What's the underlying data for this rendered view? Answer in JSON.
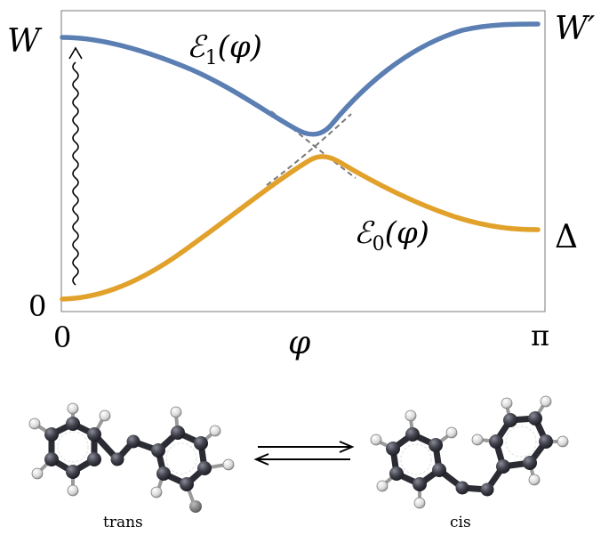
{
  "energy_diagram": {
    "x_axis": {
      "symbol": "φ",
      "tick_start": "0",
      "tick_end": "π"
    },
    "y_labels": {
      "left_top": "W",
      "left_bottom": "0",
      "right_top": "W′",
      "right_middle": "Δ"
    },
    "curves": {
      "upper": {
        "label_main": "ℰ",
        "label_sub": "1",
        "label_arg": "(φ)",
        "color": "#5b7fb3"
      },
      "lower": {
        "label_main": "ℰ",
        "label_sub": "0",
        "label_arg": "(φ)",
        "color": "#e1a12a"
      }
    },
    "crossing_color": "#7a7a7a",
    "excitation_arrow": "wavy"
  },
  "molecules": {
    "left_label": "trans",
    "right_label": "cis",
    "equilibrium_arrows": "⇄",
    "atom_color": "#40414b",
    "hydrogen_color": "#f2f2f2"
  }
}
